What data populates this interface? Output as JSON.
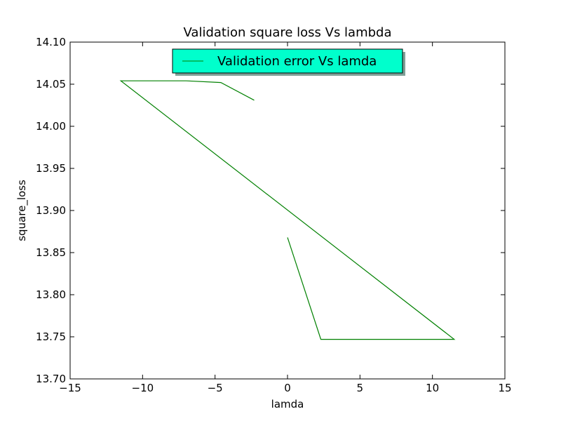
{
  "chart_data": {
    "type": "line",
    "title": "Validation square loss Vs lambda",
    "xlabel": "lamda",
    "ylabel": "square_loss",
    "xlim": [
      -15,
      15
    ],
    "ylim": [
      13.7,
      14.1
    ],
    "xticks": [
      -15,
      -10,
      -5,
      0,
      5,
      10,
      15
    ],
    "xtick_labels": [
      "−15",
      "−10",
      "−5",
      "0",
      "5",
      "10",
      "15"
    ],
    "yticks": [
      13.7,
      13.75,
      13.8,
      13.85,
      13.9,
      13.95,
      14.0,
      14.05,
      14.1
    ],
    "ytick_labels": [
      "13.70",
      "13.75",
      "13.80",
      "13.85",
      "13.90",
      "13.95",
      "14.00",
      "14.05",
      "14.10"
    ],
    "grid": false,
    "legend_position": "top-center",
    "series": [
      {
        "name": "Validation error Vs lamda",
        "color": "#008000",
        "x": [
          0,
          2.3,
          11.5,
          -11.5,
          -7.0,
          -4.6,
          -2.3
        ],
        "y": [
          13.868,
          13.747,
          13.747,
          14.054,
          14.054,
          14.052,
          14.031
        ]
      }
    ],
    "legend_bg": "#00ffcc"
  }
}
